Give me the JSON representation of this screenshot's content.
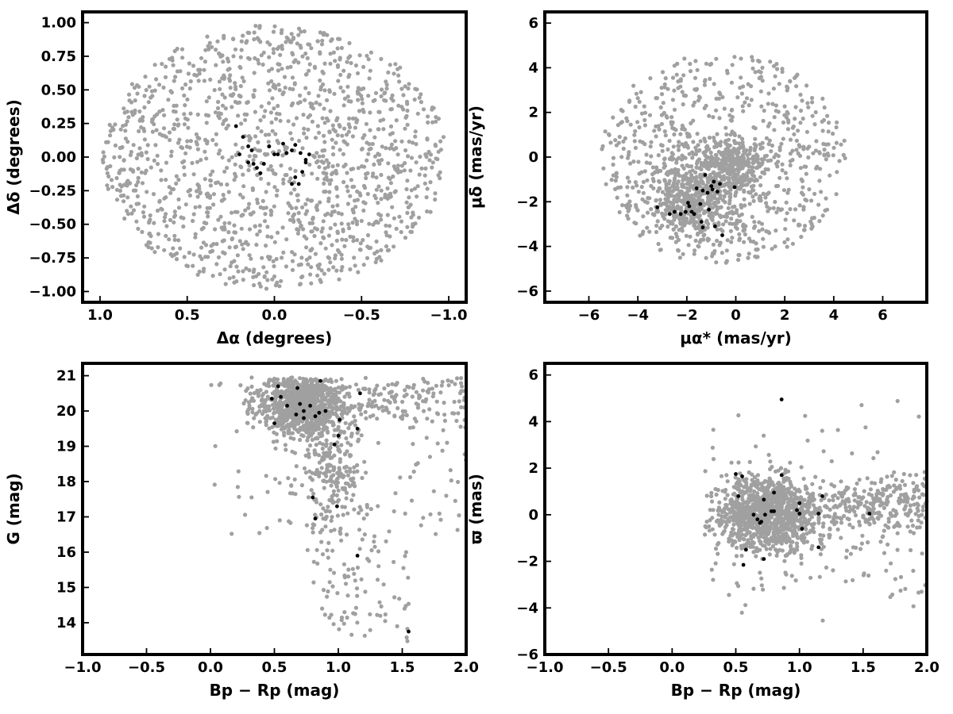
{
  "colors": {
    "field_stars": "#a0a0a0",
    "members": "#000000",
    "frame": "#000000"
  },
  "chart_data": [
    {
      "type": "scatter",
      "xlabel": "Δα (degrees)",
      "ylabel": "Δδ (degrees)",
      "xlim": [
        1.1,
        -1.1
      ],
      "ylim": [
        -1.08,
        1.08
      ],
      "x_reversed": true,
      "xticks": [
        1.0,
        0.5,
        0.0,
        -0.5,
        -1.0
      ],
      "xtick_labels": [
        "1.0",
        "0.5",
        "0.0",
        "−0.5",
        "−1.0"
      ],
      "yticks": [
        1.0,
        0.75,
        0.5,
        0.25,
        0.0,
        -0.25,
        -0.5,
        -0.75,
        -1.0
      ],
      "ytick_labels": [
        "1.00",
        "0.75",
        "0.50",
        "0.25",
        "0.00",
        "−0.25",
        "−0.50",
        "−0.75",
        "−1.00"
      ],
      "grid": false,
      "series": [
        {
          "color": "#a0a0a0",
          "distribution": "uniform disk, radius 1.0 deg",
          "count": 1400
        },
        {
          "color": "#000000",
          "x": [
            0.22,
            0.18,
            0.15,
            0.13,
            0.12,
            0.06,
            0.03,
            -0.02,
            -0.07,
            -0.1,
            -0.12,
            -0.15,
            -0.18,
            -0.2,
            -0.18,
            -0.16,
            -0.14,
            -0.12,
            -0.1,
            -0.05,
            0.0,
            0.08,
            0.1,
            0.15,
            0.2
          ],
          "y": [
            0.23,
            0.15,
            0.08,
            0.05,
            -0.05,
            -0.05,
            0.08,
            0.02,
            0.03,
            0.05,
            0.09,
            0.03,
            -0.02,
            0.02,
            -0.04,
            -0.11,
            -0.2,
            -0.15,
            -0.2,
            0.1,
            0.02,
            -0.12,
            -0.08,
            -0.04,
            0.02
          ]
        }
      ]
    },
    {
      "type": "scatter",
      "xlabel": "μα* (mas/yr)",
      "ylabel": "μδ (mas/yr)",
      "xlim": [
        -7.8,
        7.8
      ],
      "ylim": [
        -6.5,
        6.5
      ],
      "xticks": [
        -6,
        -4,
        -2,
        0,
        2,
        4,
        6
      ],
      "xtick_labels": [
        "−6",
        "−4",
        "−2",
        "0",
        "2",
        "4",
        "6"
      ],
      "yticks": [
        6,
        4,
        2,
        0,
        -2,
        -4,
        -6
      ],
      "ytick_labels": [
        "6",
        "4",
        "2",
        "0",
        "−2",
        "−4",
        "−6"
      ],
      "grid": false,
      "series": [
        {
          "color": "#a0a0a0",
          "distribution": "disk radius 5 centred (-0.5,0) clipped to x<=4.5, y>=-4.8; dense clumps near (-1.5,-1.5) and (0,0)",
          "count": 1500
        },
        {
          "color": "#000000",
          "x": [
            -1.25,
            -0.9,
            -0.65,
            -0.05,
            -1.35,
            -1.15,
            -0.95,
            -0.75,
            -1.6,
            -1.9,
            -2.05,
            -1.45,
            -1.1,
            -1.8,
            -2.25,
            -2.5,
            -2.7,
            -1.35,
            -0.85,
            -0.55,
            -1.95,
            -3.2,
            -1.7,
            -1.0,
            -1.4
          ],
          "y": [
            -0.8,
            -1.1,
            -1.2,
            -1.35,
            -1.5,
            -1.6,
            -1.45,
            -1.55,
            -1.4,
            -2.2,
            -2.45,
            -2.1,
            -2.35,
            -2.45,
            -2.55,
            -2.45,
            -2.55,
            -3.15,
            -3.1,
            -3.5,
            -2.05,
            -2.25,
            -2.55,
            -1.3,
            -2.9
          ]
        }
      ]
    },
    {
      "type": "scatter",
      "xlabel": "Bp − Rp (mag)",
      "ylabel": "G (mag)",
      "xlim": [
        -1.0,
        2.0
      ],
      "ylim": [
        13.1,
        21.35
      ],
      "xticks": [
        -1.0,
        -0.5,
        0.0,
        0.5,
        1.0,
        1.5,
        2.0
      ],
      "xtick_labels": [
        "−1.0",
        "−0.5",
        "0.0",
        "0.5",
        "1.0",
        "1.5",
        "2.0"
      ],
      "yticks": [
        14,
        15,
        16,
        17,
        18,
        19,
        20,
        21
      ],
      "ytick_labels": [
        "14",
        "15",
        "16",
        "17",
        "18",
        "19",
        "20",
        "21"
      ],
      "grid": false,
      "series": [
        {
          "color": "#a0a0a0",
          "distribution": "colour-magnitude diagram, dense clump near (0.7, 20.2), red-giant plume to (1.5,13.8), faint red field to x=2",
          "count": 1500
        },
        {
          "color": "#000000",
          "x": [
            0.53,
            0.68,
            0.86,
            0.48,
            0.55,
            0.6,
            0.7,
            0.73,
            0.78,
            0.82,
            0.9,
            0.67,
            0.73,
            0.85,
            1.01,
            0.5,
            0.97,
            1.0,
            1.15,
            1.17,
            0.8,
            0.99,
            0.82,
            1.15,
            1.55
          ],
          "y": [
            20.7,
            20.65,
            20.85,
            20.35,
            20.4,
            20.15,
            20.2,
            20.0,
            20.15,
            19.85,
            20.0,
            19.9,
            19.8,
            19.95,
            19.75,
            19.65,
            19.05,
            19.3,
            19.5,
            20.5,
            17.55,
            17.3,
            16.95,
            15.9,
            13.75
          ]
        }
      ]
    },
    {
      "type": "scatter",
      "xlabel": "Bp − Rp (mag)",
      "ylabel": "ϖ (mas)",
      "xlim": [
        -1.0,
        2.0
      ],
      "ylim": [
        -6.0,
        6.5
      ],
      "xticks": [
        -1.0,
        -0.5,
        0.0,
        0.5,
        1.0,
        1.5,
        2.0
      ],
      "xtick_labels": [
        "−1.0",
        "−0.5",
        "0.0",
        "0.5",
        "1.0",
        "1.5",
        "2.0"
      ],
      "yticks": [
        6,
        4,
        2,
        0,
        -2,
        -4,
        -6
      ],
      "ytick_labels": [
        "6",
        "4",
        "2",
        "0",
        "−2",
        "−4",
        "−6"
      ],
      "grid": false,
      "series": [
        {
          "color": "#a0a0a0",
          "distribution": "clump centred (0.75, 0.0) extending to x=2, parallax scatter ±2 with tail to ±5",
          "count": 1500
        },
        {
          "color": "#000000",
          "x": [
            0.86,
            0.5,
            0.55,
            0.52,
            0.64,
            0.67,
            0.7,
            0.72,
            0.78,
            0.8,
            0.98,
            1.0,
            1.02,
            1.15,
            0.58,
            0.72,
            0.56,
            0.73,
            0.8,
            1.18,
            1.55,
            1.0,
            0.69,
            0.86,
            1.15
          ],
          "y": [
            4.95,
            1.75,
            1.65,
            0.8,
            0.0,
            -0.2,
            -0.3,
            0.65,
            0.15,
            0.15,
            0.2,
            0.05,
            -0.6,
            0.05,
            -1.5,
            -1.9,
            -2.15,
            0.0,
            0.95,
            0.8,
            0.05,
            0.5,
            -0.35,
            1.7,
            -1.4
          ]
        }
      ]
    }
  ]
}
